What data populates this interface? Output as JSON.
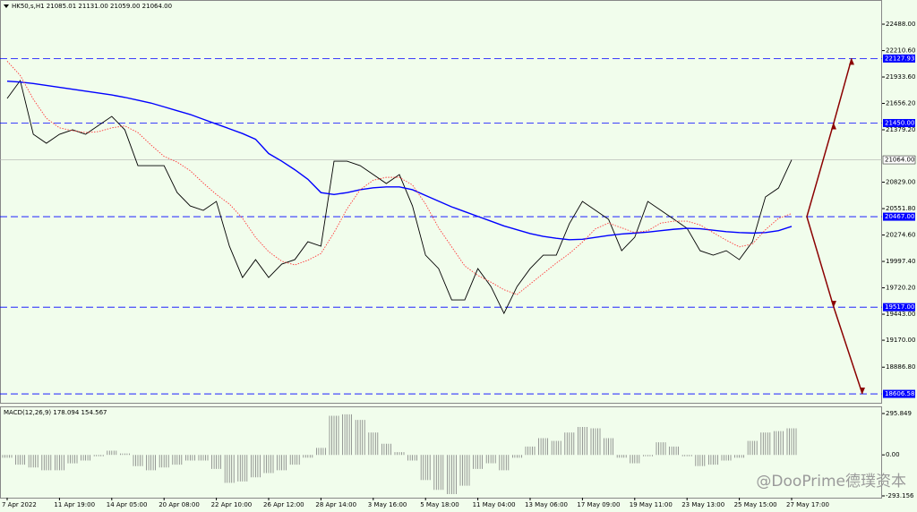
{
  "chart_data": {
    "type": "line",
    "title": "HK50,s,H1  21085.01 21131.00 21059.00 21064.00",
    "watermark": "@DooPrime德璞资本",
    "categories": [
      "7 Apr 2022",
      null,
      null,
      null,
      "11 Apr 19:00",
      null,
      null,
      null,
      "14 Apr 05:00",
      null,
      null,
      null,
      "20 Apr 08:00",
      null,
      null,
      null,
      "22 Apr 10:00",
      null,
      null,
      null,
      "26 Apr 12:00",
      null,
      null,
      null,
      "28 Apr 14:00",
      null,
      null,
      null,
      "3 May 16:00",
      null,
      null,
      null,
      "5 May 18:00",
      null,
      null,
      null,
      "11 May 04:00",
      null,
      null,
      null,
      "13 May 06:00",
      null,
      null,
      null,
      "17 May 09:00",
      null,
      null,
      null,
      "19 May 11:00",
      null,
      null,
      null,
      "23 May 13:00",
      null,
      null,
      null,
      "25 May 15:00",
      null,
      null,
      null,
      "27 May 17:00"
    ],
    "series": [
      {
        "name": "Price",
        "color": "#000000",
        "values": [
          21708,
          21896,
          21332,
          21238,
          21332,
          21379,
          21332,
          21426,
          21520,
          21379,
          21003,
          21003,
          21003,
          20721,
          20580,
          20533,
          20627,
          20157,
          19828,
          20016,
          19828,
          19969,
          20016,
          20204,
          20157,
          21050,
          21050,
          21003,
          20909,
          20815,
          20909,
          20580,
          20063,
          19922,
          19593,
          19593,
          19922,
          19734,
          19452,
          19734,
          19922,
          20063,
          20063,
          20393,
          20627,
          20533,
          20439,
          20110,
          20251,
          20627,
          20533,
          20439,
          20345,
          20110,
          20063,
          20110,
          20016,
          20204,
          20674,
          20768,
          21064
        ]
      },
      {
        "name": "MA slow",
        "color": "#0000ff",
        "values": [
          21890,
          21880,
          21865,
          21845,
          21825,
          21805,
          21785,
          21765,
          21745,
          21720,
          21690,
          21660,
          21620,
          21580,
          21540,
          21490,
          21440,
          21390,
          21340,
          21280,
          21130,
          21050,
          20960,
          20860,
          20720,
          20700,
          20720,
          20750,
          20770,
          20780,
          20780,
          20750,
          20690,
          20630,
          20570,
          20520,
          20470,
          20420,
          20370,
          20330,
          20290,
          20260,
          20240,
          20225,
          20230,
          20250,
          20270,
          20285,
          20295,
          20305,
          20320,
          20335,
          20345,
          20340,
          20325,
          20310,
          20300,
          20295,
          20300,
          20320,
          20365
        ]
      },
      {
        "name": "MA fast",
        "color": "#ff3b3b",
        "values": [
          22100,
          21950,
          21700,
          21500,
          21400,
          21370,
          21350,
          21360,
          21400,
          21420,
          21350,
          21220,
          21100,
          21040,
          20950,
          20820,
          20700,
          20600,
          20450,
          20250,
          20100,
          20000,
          19960,
          20010,
          20080,
          20300,
          20550,
          20750,
          20850,
          20880,
          20880,
          20800,
          20600,
          20350,
          20150,
          19950,
          19850,
          19780,
          19700,
          19650,
          19760,
          19870,
          19980,
          20080,
          20200,
          20340,
          20400,
          20350,
          20300,
          20320,
          20400,
          20420,
          20420,
          20380,
          20300,
          20220,
          20150,
          20180,
          20330,
          20450,
          20500
        ]
      }
    ],
    "ylim": [
      18513,
      22742
    ],
    "yticks": [
      {
        "value": 22488,
        "label": "22488.00"
      },
      {
        "value": 22210.6,
        "label": "22210.60"
      },
      {
        "value": 21933.6,
        "label": "21933.60"
      },
      {
        "value": 21656.2,
        "label": "21656.20"
      },
      {
        "value": 21379.2,
        "label": "21379.20"
      },
      {
        "value": 20829,
        "label": "20829.00"
      },
      {
        "value": 20551.8,
        "label": "20551.80"
      },
      {
        "value": 20274.6,
        "label": "20274.60"
      },
      {
        "value": 19997.4,
        "label": "19997.40"
      },
      {
        "value": 19720.2,
        "label": "19720.20"
      },
      {
        "value": 19443,
        "label": "19443.00"
      },
      {
        "value": 19170,
        "label": "19170.00"
      },
      {
        "value": 18886.8,
        "label": "18886.80"
      }
    ],
    "levels": [
      {
        "value": 22127.93,
        "label": "22127.93"
      },
      {
        "value": 21450,
        "label": "21450.00"
      },
      {
        "value": 20467,
        "label": "20467.00"
      },
      {
        "value": 19517,
        "label": "19517.00"
      },
      {
        "value": 18606.58,
        "label": "18606.58"
      }
    ],
    "level_color": "#0000ff",
    "current": {
      "value": 21064,
      "label": "21064.00"
    },
    "macd": {
      "title": "MACD(12,26,9) 178.094 154.567",
      "color": "#808080",
      "values": [
        -20,
        -70,
        -90,
        -110,
        -110,
        -60,
        -40,
        -10,
        30,
        10,
        -80,
        -110,
        -90,
        -70,
        -40,
        -40,
        -100,
        -200,
        -190,
        -160,
        -130,
        -110,
        -70,
        -20,
        50,
        280,
        290,
        250,
        160,
        80,
        20,
        -40,
        -180,
        -250,
        -280,
        -220,
        -100,
        -60,
        -110,
        -20,
        60,
        120,
        100,
        160,
        200,
        190,
        120,
        -20,
        -60,
        -10,
        90,
        60,
        -10,
        -80,
        -70,
        -40,
        -20,
        100,
        160,
        170,
        190
      ],
      "ylim": [
        -306,
        334
      ],
      "yticks": [
        295.849,
        {
          "value": 0,
          "label": "0.00"
        },
        -293.156
      ]
    }
  }
}
